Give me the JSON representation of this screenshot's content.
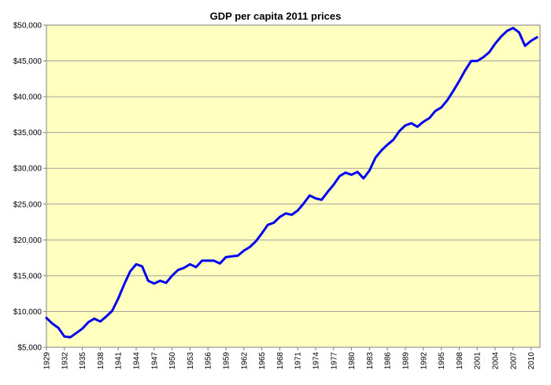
{
  "chart_data": {
    "type": "line",
    "title": "GDP per capita 2011 prices",
    "xlabel": "",
    "ylabel": "",
    "ylim": [
      5000,
      50000
    ],
    "y_ticks": [
      "$5,000",
      "$10,000",
      "$15,000",
      "$20,000",
      "$25,000",
      "$30,000",
      "$35,000",
      "$40,000",
      "$45,000",
      "$50,000"
    ],
    "y_tick_values": [
      5000,
      10000,
      15000,
      20000,
      25000,
      30000,
      35000,
      40000,
      45000,
      50000
    ],
    "x_ticks": [
      "1929",
      "1932",
      "1935",
      "1938",
      "1941",
      "1944",
      "1947",
      "1950",
      "1953",
      "1956",
      "1959",
      "1962",
      "1965",
      "1968",
      "1971",
      "1974",
      "1977",
      "1980",
      "1983",
      "1986",
      "1989",
      "1992",
      "1995",
      "1998",
      "2001",
      "2004",
      "2007",
      "2010"
    ],
    "grid": true,
    "legend": "none",
    "colors": {
      "line": "#0000ee",
      "plot_background": "#ffffc0",
      "grid": "#a0a0a0"
    },
    "series": [
      {
        "x": [
          1929,
          1930,
          1931,
          1932,
          1933,
          1934,
          1935,
          1936,
          1937,
          1938,
          1939,
          1940,
          1941,
          1942,
          1943,
          1944,
          1945,
          1946,
          1947,
          1948,
          1949,
          1950,
          1951,
          1952,
          1953,
          1954,
          1955,
          1956,
          1957,
          1958,
          1959,
          1960,
          1961,
          1962,
          1963,
          1964,
          1965,
          1966,
          1967,
          1968,
          1969,
          1970,
          1971,
          1972,
          1973,
          1974,
          1975,
          1976,
          1977,
          1978,
          1979,
          1980,
          1981,
          1982,
          1983,
          1984,
          1985,
          1986,
          1987,
          1988,
          1989,
          1990,
          1991,
          1992,
          1993,
          1994,
          1995,
          1996,
          1997,
          1998,
          1999,
          2000,
          2001,
          2002,
          2003,
          2004,
          2005,
          2006,
          2007,
          2008,
          2009,
          2010,
          2011
        ],
        "values": [
          9100,
          8300,
          7700,
          6500,
          6400,
          7000,
          7600,
          8500,
          9000,
          8600,
          9300,
          10100,
          11800,
          13800,
          15600,
          16600,
          16300,
          14300,
          13900,
          14300,
          14000,
          15000,
          15800,
          16100,
          16600,
          16200,
          17100,
          17100,
          17100,
          16700,
          17600,
          17700,
          17800,
          18500,
          19000,
          19800,
          20900,
          22100,
          22400,
          23200,
          23700,
          23500,
          24100,
          25100,
          26200,
          25800,
          25600,
          26700,
          27700,
          28900,
          29400,
          29100,
          29500,
          28600,
          29700,
          31500,
          32500,
          33300,
          34000,
          35200,
          36000,
          36300,
          35800,
          36500,
          37000,
          38000,
          38500,
          39500,
          40800,
          42200,
          43700,
          45000,
          45000,
          45500,
          46200,
          47400,
          48400,
          49200,
          49600,
          49000,
          47100,
          47800,
          48300
        ]
      }
    ]
  }
}
